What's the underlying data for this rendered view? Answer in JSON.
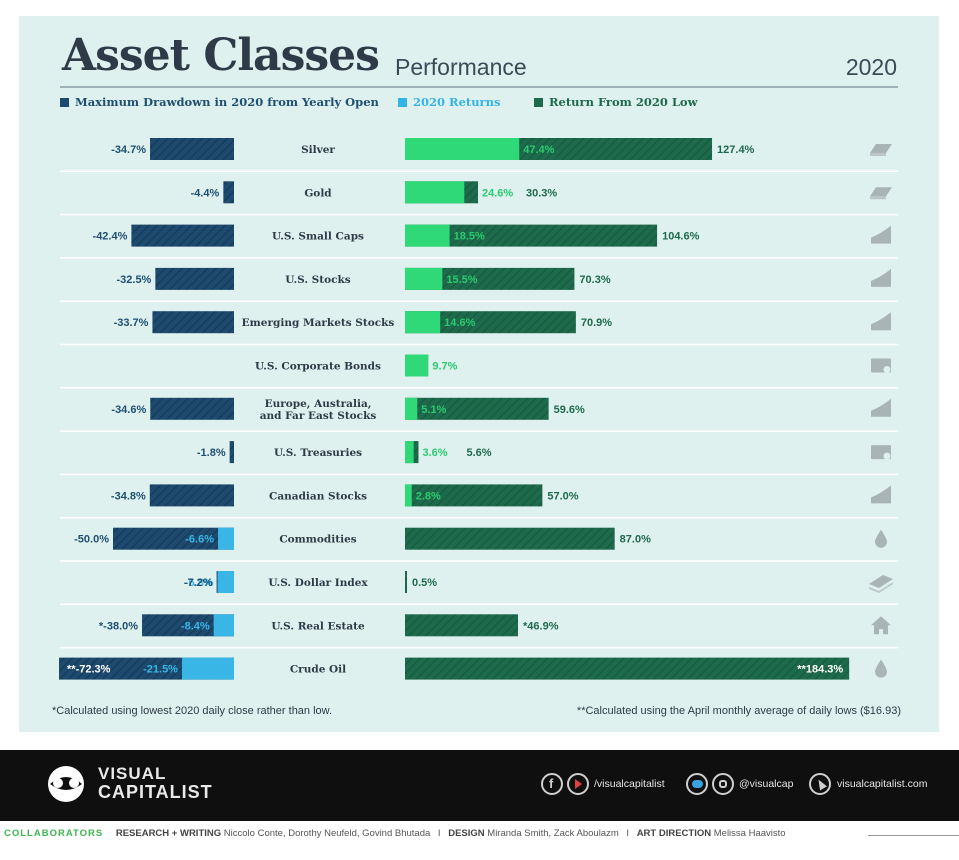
{
  "header": {
    "title": "Asset Classes",
    "subtitle": "Performance",
    "year": "2020",
    "legend": [
      {
        "label": "Maximum Drawdown in 2020 from Yearly Open",
        "color": "#1d4a6e"
      },
      {
        "label": "2020 Returns",
        "color": "#34b3e6"
      },
      {
        "label": "Return From 2020 Low",
        "color": "#1e6a4c"
      }
    ]
  },
  "colors": {
    "drawdown": "#1d4a6e",
    "drawdown_light": "#3ab6e6",
    "returns": "#30d978",
    "from_low": "#1e6a4c",
    "label_dark": "#2f3a48",
    "label_blue": "#1f4f72",
    "label_green": "#2bcb6f",
    "icon": "#a9b4b7"
  },
  "chart_data": {
    "type": "bar",
    "title": "Asset Classes",
    "subtitle": "Performance",
    "categories": [
      "Silver",
      "Gold",
      "U.S. Small Caps",
      "U.S. Stocks",
      "Emerging Markets Stocks",
      "U.S. Corporate Bonds",
      "Europe, Australia,\nand Far East Stocks",
      "U.S. Treasuries",
      "Canadian Stocks",
      "Commodities",
      "U.S. Dollar Index",
      "U.S. Real Estate",
      "Crude Oil"
    ],
    "series": [
      {
        "name": "Maximum Drawdown in 2020 from Yearly Open",
        "values": [
          -34.7,
          -4.4,
          -42.4,
          -32.5,
          -33.7,
          null,
          -34.6,
          -1.8,
          -34.8,
          -50.0,
          -7.2,
          -38.0,
          -72.3
        ],
        "labels": [
          "-34.7%",
          "-4.4%",
          "-42.4%",
          "-32.5%",
          "-33.7%",
          "",
          "-34.6%",
          "-1.8%",
          "-34.8%",
          "-50.0%",
          "-7.2%",
          "*-38.0%",
          "**-72.3%"
        ]
      },
      {
        "name": "2020 Returns",
        "values": [
          47.4,
          24.6,
          18.5,
          15.5,
          14.6,
          9.7,
          5.1,
          3.6,
          2.8,
          -6.6,
          -6.8,
          -8.4,
          -21.5
        ],
        "labels": [
          "47.4%",
          "24.6%",
          "18.5%",
          "15.5%",
          "14.6%",
          "9.7%",
          "5.1%",
          "3.6%",
          "2.8%",
          "-6.6%",
          "-6.8%",
          "-8.4%",
          "-21.5%"
        ]
      },
      {
        "name": "Return From 2020 Low",
        "values": [
          127.4,
          30.3,
          104.6,
          70.3,
          70.9,
          null,
          59.6,
          5.6,
          57.0,
          87.0,
          0.5,
          46.9,
          184.3
        ],
        "labels": [
          "127.4%",
          "30.3%",
          "104.6%",
          "70.3%",
          "70.9%",
          "",
          "59.6%",
          "5.6%",
          "57.0%",
          "87.0%",
          "0.5%",
          "*46.9%",
          "**184.3%"
        ]
      }
    ],
    "icons": [
      "silver-bar",
      "gold-bar",
      "chart-up",
      "chart-up",
      "chart-up",
      "bond-certificate",
      "chart-up",
      "bond-certificate",
      "chart-up",
      "oil-drop",
      "cash-stack",
      "house",
      "oil-drop"
    ],
    "legend_position": "top-left",
    "grid": false
  },
  "footnotes": {
    "left": "*Calculated using lowest 2020 daily close rather than low.",
    "right": "**Calculated using the April monthly average of daily lows ($16.93)"
  },
  "footer": {
    "logo_line1": "VISUAL",
    "logo_line2": "CAPITALIST",
    "social_handle_1": "/visualcapitalist",
    "social_handle_2": "@visualcap",
    "website": "visualcapitalist.com"
  },
  "credits": {
    "label": "COLLABORATORS",
    "research_label": "RESEARCH + WRITING",
    "research_names": "Niccolo Conte, Dorothy Neufeld, Govind Bhutada",
    "design_label": "DESIGN",
    "design_names": "Miranda Smith, Zack Aboulazm",
    "direction_label": "ART DIRECTION",
    "direction_names": "Melissa Haavisto",
    "separator": "I"
  }
}
